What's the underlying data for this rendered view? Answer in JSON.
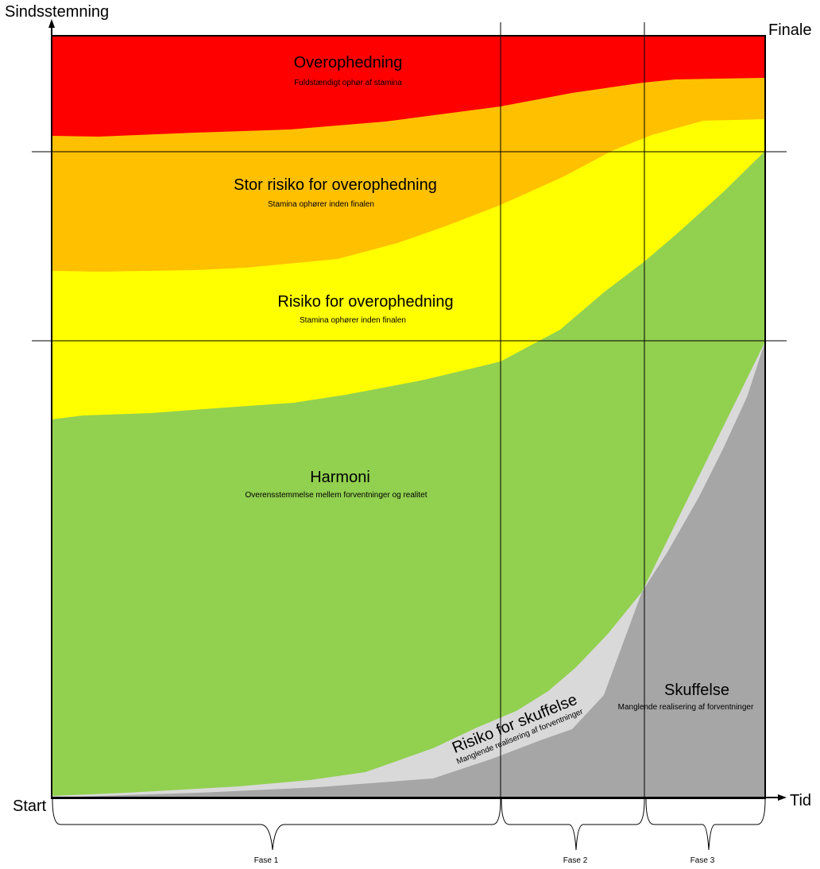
{
  "axes": {
    "y_label": "Sindsstemning",
    "x_label": "Tid",
    "start_label": "Start",
    "end_label": "Finale"
  },
  "zones": {
    "overophedning": {
      "title": "Overophedning",
      "subtitle": "Fuldstændigt ophør af stamina",
      "color": "#ff0000"
    },
    "stor_risiko": {
      "title": "Stor risiko for overophedning",
      "subtitle": "Stamina ophører inden finalen",
      "color": "#ffc000"
    },
    "risiko_overophedning": {
      "title": "Risiko for overophedning",
      "subtitle": "Stamina ophører inden finalen",
      "color": "#ffff00"
    },
    "harmoni": {
      "title": "Harmoni",
      "subtitle": "Overensstemmelse mellem forventninger og realitet",
      "color": "#92d050"
    },
    "risiko_skuffelse": {
      "title": "Risiko for skuffelse",
      "subtitle": "Manglende realisering af forventninger",
      "color": "#d9d9d9"
    },
    "skuffelse": {
      "title": "Skuffelse",
      "subtitle": "Manglende realisering af forventninger",
      "color": "#a6a6a6"
    }
  },
  "phases": [
    {
      "label": "Fase 1"
    },
    {
      "label": "Fase 2"
    },
    {
      "label": "Fase 3"
    }
  ]
}
